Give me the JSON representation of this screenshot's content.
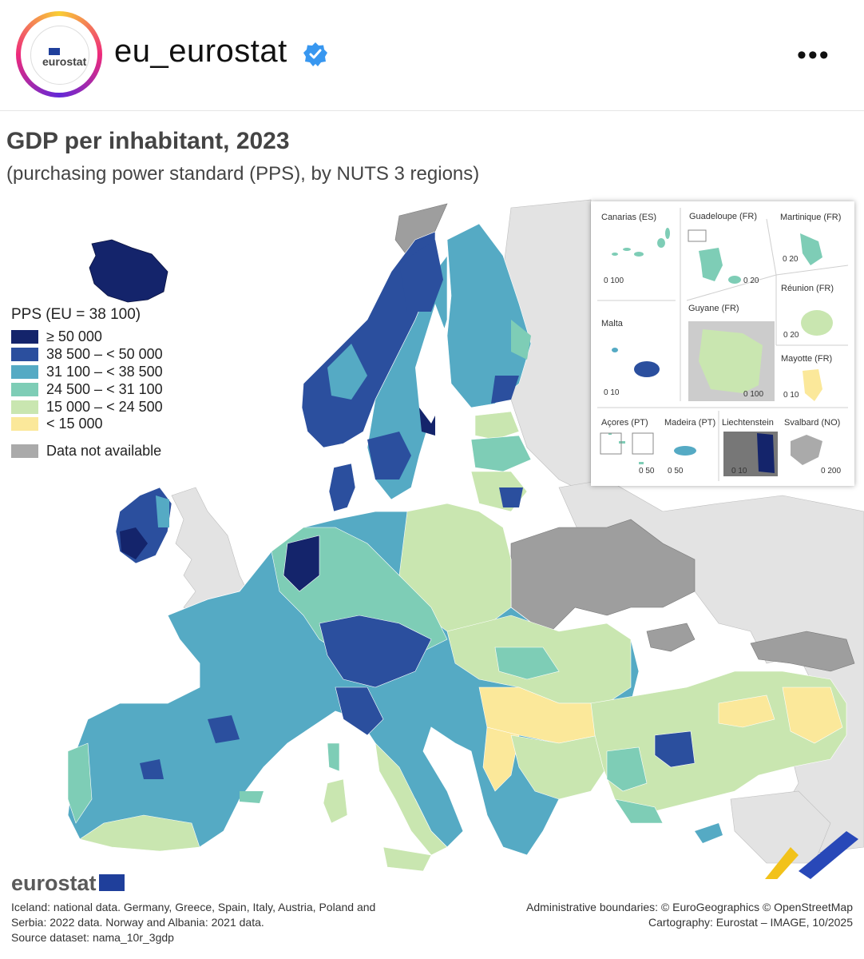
{
  "header": {
    "handle": "eu_eurostat",
    "avatar_text": "eurostat",
    "more_label": "•••"
  },
  "map": {
    "title": "GDP per inhabitant, 2023",
    "subtitle": "(purchasing power standard (PPS), by NUTS 3 regions)",
    "legend_title": "PPS (EU = 38 100)",
    "legend": [
      {
        "label": "≥ 50 000",
        "color": "#14246b"
      },
      {
        "label": "38 500 – < 50 000",
        "color": "#2b4f9e"
      },
      {
        "label": "31 100 – < 38 500",
        "color": "#55aac4"
      },
      {
        "label": "24 500 – < 31 100",
        "color": "#7ecdb6"
      },
      {
        "label": "15 000 – < 24 500",
        "color": "#c9e6b0"
      },
      {
        "label": "< 15 000",
        "color": "#fbe89a"
      }
    ],
    "na": {
      "label": "Data not available",
      "color": "#aaaaaa"
    },
    "insets": {
      "canarias": "Canarias (ES)",
      "canarias_scale": "0  100",
      "guadeloupe": "Guadeloupe (FR)",
      "guadeloupe_scale": "0  20",
      "martinique": "Martinique (FR)",
      "martinique_scale": "0  20",
      "reunion": "Réunion (FR)",
      "reunion_scale": "0  20",
      "guyane": "Guyane (FR)",
      "guyane_scale": "0  100",
      "malta": "Malta",
      "malta_scale": "0  10",
      "mayotte": "Mayotte (FR)",
      "mayotte_scale": "0  10",
      "acores": "Açores (PT)",
      "acores_scale": "0  50",
      "madeira": "Madeira (PT)",
      "madeira_scale": "0  50",
      "liechtenstein": "Liechtenstein",
      "liechtenstein_scale": "0  10",
      "svalbard": "Svalbard (NO)",
      "svalbard_scale": "0  200"
    }
  },
  "footer": {
    "logo_text": "eurostat",
    "notes": [
      "Iceland: national data. Germany, Greece, Spain, Italy, Austria, Poland and",
      "Serbia: 2022 data. Norway and Albania: 2021 data.",
      "Source dataset: nama_10r_3gdp"
    ],
    "credits": [
      "Administrative boundaries: © EuroGeographics © OpenStreetMap",
      "Cartography: Eurostat – IMAGE, 10/2025"
    ]
  }
}
